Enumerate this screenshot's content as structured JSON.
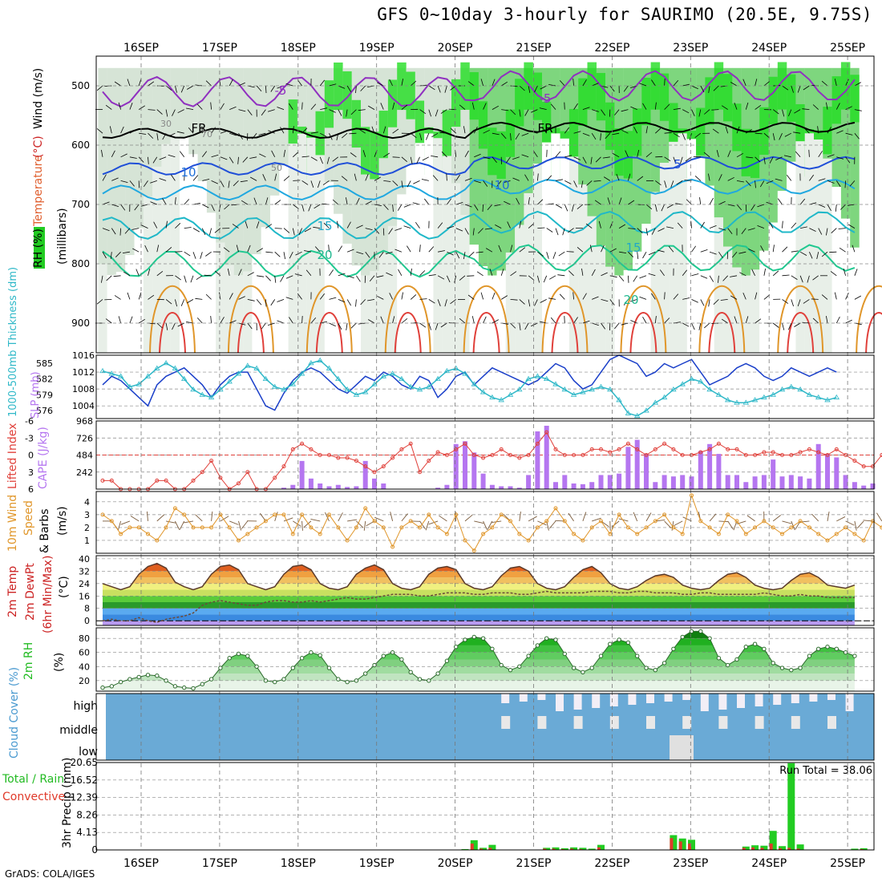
{
  "header": {
    "title": "GFS 0~10day 3-hourly for SAURIMO (20.5E, 9.75S)",
    "footer": "GrADS: COLA/IGES"
  },
  "colors": {
    "cape": "#b576f0",
    "lifted_index": "#e0403a",
    "slp": "#1a3fc9",
    "thickness": "#2fb8c8",
    "wind_speed": "#e0962a",
    "barb": "#7a5a3a",
    "rh": "#22bb22",
    "cloud": "#6aaad6",
    "cloud_clear": "#e8e8e8",
    "precip_total": "#22cc22",
    "precip_conv": "#e03a2a"
  },
  "chart_data": [
    {
      "panel": "upper-air",
      "type": "heatmap",
      "ylabel_units": "(millibars)",
      "ylabel_parts": [
        {
          "text": "RH (%)",
          "color": "#000000"
        },
        {
          "text": "Temperature",
          "color": "#e06030"
        },
        {
          "text": "(°C)",
          "color": "#cc2222"
        },
        {
          "text": "Wind (m/s)",
          "color": "#000000"
        }
      ],
      "y_ticks": [
        500,
        600,
        700,
        800,
        900
      ],
      "ylim": [
        450,
        950
      ],
      "contour_labels": [
        {
          "text": "-5",
          "color": "#9030c0"
        },
        {
          "text": "-5",
          "color": "#9030c0"
        },
        {
          "text": "FR",
          "color": "#000000"
        },
        {
          "text": "FR",
          "color": "#000000"
        },
        {
          "text": "10",
          "color": "#1f6fd8"
        },
        {
          "text": "10",
          "color": "#1f6fd8"
        },
        {
          "text": "5",
          "color": "#1f4fd8"
        },
        {
          "text": "15",
          "color": "#20a8c8"
        },
        {
          "text": "15",
          "color": "#20a8c8"
        },
        {
          "text": "20",
          "color": "#20b890"
        },
        {
          "text": "20",
          "color": "#20b890"
        },
        {
          "text": "30",
          "color": "#888888"
        },
        {
          "text": "50",
          "color": "#888888"
        },
        {
          "text": "70",
          "color": "#888888"
        }
      ]
    },
    {
      "panel": "thickness-slp",
      "type": "line",
      "ylabel_left": "1000-500mb Thickness (dm)",
      "ylabel_right": "SLP (mb)",
      "left_ticks": [
        576,
        579,
        582,
        585
      ],
      "right_ticks": [
        1004,
        1008,
        1012,
        1016
      ],
      "ylim_left": [
        574.5,
        586.5
      ],
      "ylim_right": [
        1001,
        1016
      ],
      "series": [
        {
          "name": "SLP",
          "axis": "right",
          "values": [
            1009,
            1011,
            1010,
            1008,
            1006,
            1004,
            1009,
            1011,
            1012,
            1013,
            1011,
            1009,
            1006,
            1009,
            1011,
            1012,
            1012,
            1008,
            1004,
            1003,
            1007,
            1010,
            1012,
            1013,
            1012,
            1010,
            1008,
            1007,
            1009,
            1011,
            1010,
            1012,
            1011,
            1009,
            1008,
            1011,
            1010,
            1006,
            1008,
            1011,
            1012,
            1009,
            1011,
            1013,
            1012,
            1011,
            1010,
            1009,
            1010,
            1012,
            1014,
            1013,
            1010,
            1008,
            1009,
            1012,
            1015,
            1016,
            1015,
            1014,
            1011,
            1012,
            1014,
            1013,
            1014,
            1015,
            1012,
            1009,
            1010,
            1011,
            1013,
            1014,
            1013,
            1011,
            1010,
            1011,
            1013,
            1012,
            1011,
            1012,
            1013,
            1012
          ]
        },
        {
          "name": "Thickness",
          "axis": "left",
          "values": [
            583.5,
            583,
            582.5,
            580.5,
            581,
            582.5,
            584,
            585,
            584,
            582,
            580,
            579,
            578.5,
            580,
            581.5,
            583,
            584.5,
            584,
            582,
            580.5,
            580,
            581,
            583,
            585,
            585.5,
            584,
            582,
            580,
            579,
            579.5,
            581,
            582.5,
            583,
            582,
            580.5,
            580,
            580.5,
            582,
            583.5,
            584,
            583,
            581,
            579.5,
            578.5,
            578,
            579,
            580,
            582,
            582.5,
            582,
            581,
            580,
            579,
            579.5,
            580,
            580.5,
            580,
            578,
            575.5,
            575,
            576,
            577.5,
            578.5,
            580,
            581,
            582,
            581.5,
            580,
            579,
            578,
            577.5,
            577.5,
            578,
            578.5,
            579,
            580,
            580.5,
            580,
            579,
            578.5,
            578,
            578.5
          ]
        }
      ]
    },
    {
      "panel": "cape-li",
      "type": "bar",
      "ylabel_left": "Lifted Index",
      "ylabel_right": "CAPE (J/kg)",
      "left_ticks": [
        -6,
        -3,
        0,
        3,
        6
      ],
      "right_ticks": [
        242,
        484,
        726,
        968
      ],
      "ylim_cape": [
        0,
        968
      ],
      "ylim_li": [
        6,
        -6
      ],
      "cape_values": [
        0,
        0,
        0,
        0,
        0,
        0,
        0,
        0,
        0,
        0,
        0,
        0,
        0,
        0,
        0,
        0,
        0,
        0,
        0,
        0,
        20,
        60,
        400,
        150,
        80,
        40,
        60,
        30,
        40,
        400,
        150,
        80,
        0,
        0,
        0,
        0,
        0,
        20,
        60,
        640,
        680,
        520,
        220,
        60,
        40,
        40,
        20,
        200,
        820,
        900,
        100,
        200,
        80,
        70,
        100,
        200,
        200,
        220,
        600,
        700,
        500,
        100,
        200,
        180,
        200,
        180,
        540,
        640,
        500,
        200,
        200,
        100,
        180,
        200,
        420,
        180,
        200,
        180,
        150,
        640,
        500,
        450,
        200,
        100,
        50,
        80
      ],
      "li_values": [
        4.5,
        4.5,
        6,
        6,
        6,
        6,
        4.5,
        4.5,
        6,
        6,
        4.5,
        3,
        1,
        4,
        6,
        5,
        3,
        6,
        6,
        4,
        2,
        -1,
        -2,
        -1,
        0,
        0,
        0.5,
        0.5,
        1,
        2,
        3,
        2,
        0.5,
        -1,
        -2,
        3,
        1,
        -0.5,
        0,
        -1,
        -2,
        0,
        0.5,
        0,
        -1,
        0,
        0.5,
        0,
        -2,
        -4,
        -1,
        0,
        0,
        0,
        -1,
        -1,
        -0.5,
        -1,
        -2,
        -1,
        0,
        -1,
        -2,
        -1,
        0,
        0,
        -0.5,
        -1,
        -2,
        -1,
        -1,
        0,
        0,
        -0.5,
        -0.5,
        0,
        0,
        -0.5,
        -1,
        -0.5,
        0,
        -1,
        0,
        1,
        2,
        2,
        0
      ]
    },
    {
      "panel": "wind10m",
      "type": "line",
      "ylabel_parts": [
        {
          "text": "10m Wind",
          "color": "#e0962a"
        },
        {
          "text": "Speed",
          "color": "#e0962a"
        },
        {
          "text": "& Barbs",
          "color": "#000000"
        },
        {
          "text": "(m/s)",
          "color": "#000000"
        }
      ],
      "y_ticks": [
        1,
        2,
        3,
        4
      ],
      "ylim": [
        0,
        4.8
      ],
      "values": [
        3,
        2.5,
        1.5,
        2,
        2,
        1.5,
        1,
        2,
        3.5,
        3,
        2,
        2,
        2,
        3,
        2,
        1,
        1.5,
        2,
        2.5,
        3,
        3,
        1.5,
        3,
        2,
        1.5,
        3,
        2,
        1,
        2,
        3.5,
        2.5,
        2,
        0.5,
        2,
        2.5,
        2,
        3,
        2,
        1.5,
        3,
        1,
        0.2,
        1.5,
        2,
        3,
        2.5,
        1.5,
        1,
        2,
        2.5,
        3.5,
        2.5,
        1.5,
        1,
        2,
        2.5,
        1.5,
        3,
        2,
        1.5,
        2,
        2.5,
        3,
        2,
        1.5,
        4.5,
        2.5,
        2,
        1.5,
        3,
        2.5,
        1.5,
        2,
        2.5,
        2,
        1.5,
        2,
        2.5,
        2,
        1.5,
        1,
        1.5,
        2,
        1.5,
        1,
        2.5,
        2
      ]
    },
    {
      "panel": "temp2m",
      "type": "area",
      "ylabel_parts": [
        {
          "text": "2m Temp",
          "color": "#cc2222"
        },
        {
          "text": "2m DewPt",
          "color": "#cc2222"
        },
        {
          "text": "(6hr Min/Max)",
          "color": "#cc2222"
        },
        {
          "text": "(°C)",
          "color": "#000000"
        }
      ],
      "y_ticks": [
        0,
        8,
        16,
        24,
        32,
        40
      ],
      "ylim": [
        -3,
        42
      ],
      "temp_values": [
        24,
        22,
        20,
        22,
        30,
        35,
        37,
        34,
        25,
        22,
        20,
        22,
        30,
        35,
        36,
        33,
        24,
        22,
        20,
        22,
        30,
        35,
        36,
        33,
        24,
        21,
        20,
        22,
        30,
        34,
        36,
        33,
        24,
        21,
        20,
        22,
        30,
        34,
        35,
        33,
        24,
        21,
        20,
        22,
        29,
        34,
        35,
        32,
        24,
        21,
        20,
        22,
        28,
        33,
        35,
        31,
        24,
        21,
        20,
        22,
        26,
        29,
        30,
        28,
        23,
        21,
        20,
        21,
        26,
        30,
        31,
        28,
        23,
        21,
        20,
        21,
        26,
        30,
        31,
        28,
        23,
        22,
        21,
        23
      ],
      "dew_values": [
        0,
        1,
        0,
        0,
        2,
        0,
        -1,
        1,
        2,
        3,
        5,
        10,
        12,
        13,
        12,
        11,
        10,
        10,
        12,
        13,
        13,
        12,
        12,
        13,
        12,
        13,
        14,
        15,
        14,
        14,
        15,
        16,
        17,
        17,
        17,
        16,
        16,
        17,
        18,
        18,
        18,
        17,
        17,
        18,
        18,
        18,
        17,
        17,
        18,
        19,
        18,
        18,
        18,
        18,
        19,
        19,
        19,
        18,
        18,
        19,
        19,
        18,
        18,
        18,
        17,
        17,
        18,
        18,
        17,
        17,
        17,
        17,
        17,
        18,
        17,
        16,
        16,
        17,
        16,
        16,
        15,
        15,
        15,
        15
      ]
    },
    {
      "panel": "rh2m",
      "type": "area",
      "ylabel_parts": [
        {
          "text": "2m RH",
          "color": "#22bb22"
        },
        {
          "text": "(%)",
          "color": "#000000"
        }
      ],
      "y_ticks": [
        20,
        40,
        60,
        80
      ],
      "ylim": [
        5,
        95
      ],
      "values": [
        10,
        12,
        18,
        22,
        25,
        28,
        27,
        20,
        12,
        10,
        9,
        15,
        22,
        38,
        52,
        58,
        55,
        40,
        20,
        18,
        22,
        38,
        52,
        60,
        56,
        38,
        22,
        18,
        20,
        30,
        42,
        55,
        60,
        50,
        32,
        22,
        20,
        30,
        48,
        68,
        78,
        82,
        80,
        65,
        42,
        35,
        40,
        55,
        70,
        80,
        78,
        58,
        38,
        32,
        38,
        55,
        72,
        78,
        74,
        55,
        38,
        35,
        45,
        65,
        82,
        90,
        90,
        80,
        52,
        42,
        50,
        68,
        72,
        65,
        45,
        38,
        35,
        38,
        55,
        65,
        68,
        65,
        60,
        55
      ]
    },
    {
      "panel": "cloud",
      "type": "heatmap",
      "ylabel": "Cloud Cover (%)",
      "levels": [
        "high",
        "middle",
        "low"
      ]
    },
    {
      "panel": "precip",
      "type": "bar",
      "ylabel_parts": [
        {
          "text": "Total / Rain",
          "color": "#22bb22"
        },
        {
          "text": "Convective",
          "color": "#e03a2a"
        },
        {
          "text": "3hr Precip (mm)",
          "color": "#000000"
        }
      ],
      "y_ticks": [
        0,
        4.13,
        8.26,
        12.39,
        16.52,
        20.65
      ],
      "y_tick_labels": [
        "0",
        "4.13",
        "8.26",
        "12.39",
        "16.52",
        "20.65"
      ],
      "ylim": [
        0,
        20.65
      ],
      "run_total_label": "Run Total = 38.06",
      "total_values": [
        0,
        0,
        0,
        0,
        0,
        0,
        0,
        0,
        0,
        0,
        0,
        0,
        0,
        0,
        0,
        0,
        0,
        0,
        0,
        0,
        0,
        0,
        0,
        0,
        0,
        0,
        0,
        0,
        0,
        0,
        0,
        0,
        0,
        0,
        0,
        0,
        0,
        0,
        0,
        0,
        0.2,
        2.3,
        0.5,
        1.2,
        0,
        0,
        0,
        0,
        0,
        0.5,
        0.6,
        0.4,
        0.6,
        0.5,
        0.3,
        1.2,
        0,
        0,
        0,
        0,
        0,
        0,
        0,
        3.5,
        2.7,
        2.4,
        0,
        0,
        0,
        0,
        0,
        0.8,
        1.1,
        1.0,
        4.5,
        0.9,
        20.5,
        1.3,
        0,
        0,
        0,
        0,
        0,
        0.3,
        0.4,
        0,
        0
      ],
      "conv_values": [
        0,
        0,
        0,
        0,
        0,
        0,
        0,
        0,
        0,
        0,
        0,
        0,
        0,
        0,
        0,
        0,
        0,
        0,
        0,
        0,
        0,
        0,
        0,
        0,
        0,
        0,
        0,
        0,
        0,
        0,
        0,
        0,
        0,
        0,
        0,
        0,
        0,
        0,
        0,
        0,
        0.1,
        1.5,
        0.3,
        0.5,
        0,
        0,
        0,
        0,
        0,
        0.3,
        0.3,
        0.2,
        0.3,
        0.2,
        0.1,
        0.6,
        0,
        0,
        0,
        0,
        0,
        0,
        0,
        2.8,
        2.0,
        1.5,
        0,
        0,
        0,
        0,
        0,
        0.5,
        0.6,
        0.5,
        1.5,
        0.4,
        0.5,
        0.3,
        0,
        0,
        0,
        0,
        0,
        0.1,
        0.2,
        0,
        0
      ]
    }
  ],
  "days": [
    "16SEP",
    "17SEP",
    "18SEP",
    "19SEP",
    "20SEP",
    "21SEP",
    "22SEP",
    "23SEP",
    "24SEP",
    "25SEP"
  ]
}
